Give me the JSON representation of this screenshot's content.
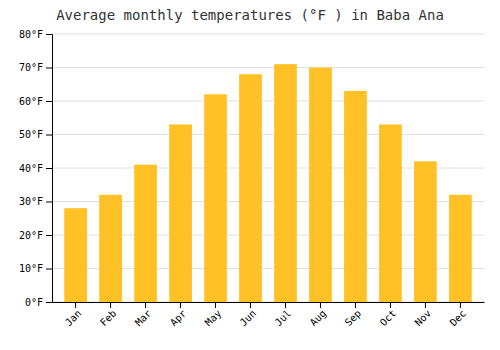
{
  "chart_data": {
    "type": "bar",
    "title": "Average monthly temperatures (°F ) in Baba Ana",
    "categories": [
      "Jan",
      "Feb",
      "Mar",
      "Apr",
      "May",
      "Jun",
      "Jul",
      "Aug",
      "Sep",
      "Oct",
      "Nov",
      "Dec"
    ],
    "values": [
      28,
      32,
      41,
      53,
      62,
      68,
      71,
      70,
      63,
      53,
      42,
      32
    ],
    "color": "#FFC125",
    "ylim": [
      0,
      80
    ],
    "yticks": [
      {
        "value": 0,
        "label": "0°F"
      },
      {
        "value": 10,
        "label": "10°F"
      },
      {
        "value": 20,
        "label": "20°F"
      },
      {
        "value": 30,
        "label": "30°F"
      },
      {
        "value": 40,
        "label": "40°F"
      },
      {
        "value": 50,
        "label": "50°F"
      },
      {
        "value": 60,
        "label": "60°F"
      },
      {
        "value": 70,
        "label": "70°F"
      },
      {
        "value": 80,
        "label": "80°F"
      }
    ],
    "grid": true
  }
}
